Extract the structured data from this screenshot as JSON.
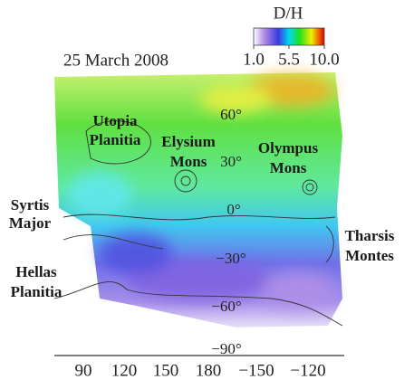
{
  "colorbar": {
    "title": "D/H",
    "range": [
      1,
      10
    ],
    "ticks": [
      {
        "value": 1,
        "label": "1.0"
      },
      {
        "value": 5.5,
        "label": "5.5"
      },
      {
        "value": 10,
        "label": "10.0"
      }
    ]
  },
  "date": "25 March 2008",
  "regions": [
    "Utopia Planitia",
    "Elysium Mons",
    "Olympus Mons",
    "Syrtis Major",
    "Tharsis Montes",
    "Hellas Planitia"
  ],
  "lat_labels": [
    "60°",
    "30°",
    "0°",
    "−30°",
    "−60°",
    "−90°"
  ],
  "lon_labels": [
    "90",
    "120",
    "150",
    "180",
    "−150",
    "−120"
  ]
}
